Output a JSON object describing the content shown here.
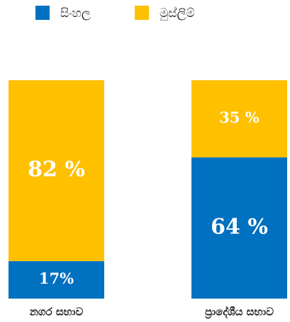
{
  "chart_data": {
    "type": "stacked_bar",
    "categories": [
      "නගර සභාව",
      "ප්‍රාදේශීය සභාව"
    ],
    "series": [
      {
        "name": "සිංහල",
        "color": "#0070c0",
        "values": [
          17,
          64
        ],
        "value_labels": [
          "17%",
          "64 %"
        ]
      },
      {
        "name": "මුස්ලිම්",
        "color": "#ffc000",
        "values": [
          82,
          35
        ],
        "value_labels": [
          "82 %",
          "35 %"
        ]
      }
    ],
    "ylim": [
      0,
      100
    ]
  }
}
